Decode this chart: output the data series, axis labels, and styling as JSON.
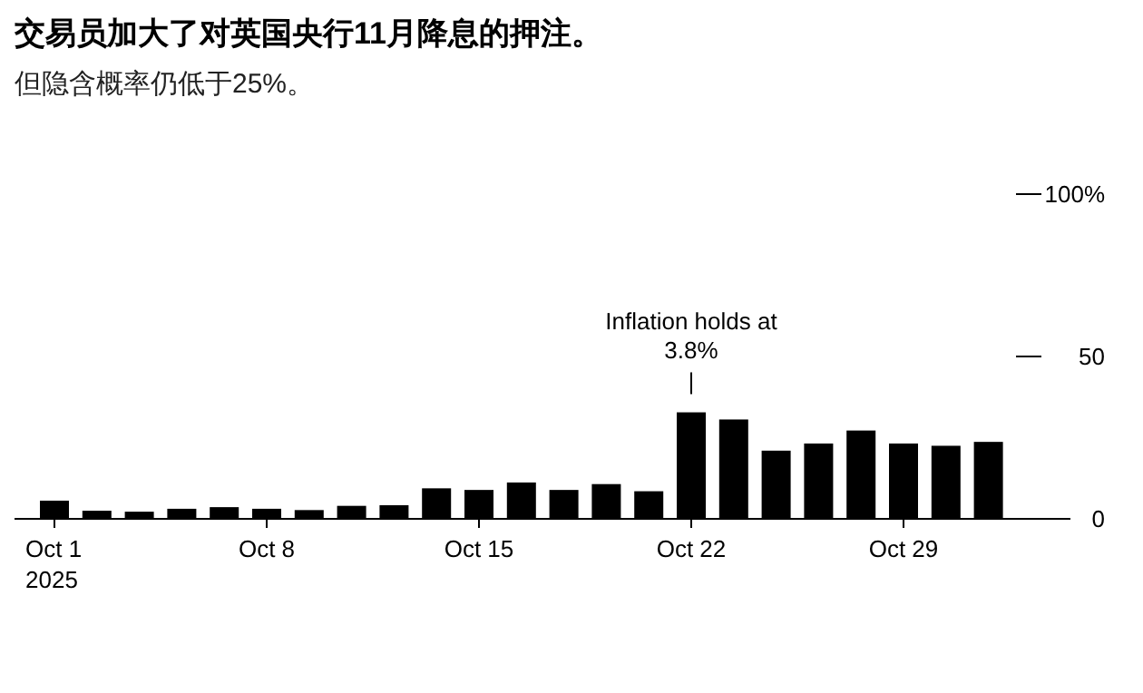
{
  "chart_data": {
    "type": "bar",
    "title": "交易员加大了对英国央行11月降息的押注。",
    "subtitle": "但隐含概率仍低于25%。",
    "categories": [
      "Oct 1\n2025",
      null,
      null,
      null,
      null,
      "Oct 8",
      null,
      null,
      null,
      null,
      "Oct 15",
      null,
      null,
      null,
      null,
      "Oct 22",
      null,
      null,
      null,
      null,
      "Oct 29",
      null,
      null
    ],
    "values": [
      5.6,
      2.5,
      2.2,
      3.1,
      3.6,
      3.1,
      2.7,
      4.0,
      4.2,
      9.4,
      8.9,
      11.2,
      8.9,
      10.7,
      8.5,
      32.8,
      30.6,
      21.0,
      23.2,
      27.2,
      23.2,
      22.5,
      23.7
    ],
    "color": "#000000",
    "ylim": [
      0,
      100
    ],
    "yticks": [
      0,
      50,
      {
        "value": 100,
        "label": "100%"
      }
    ],
    "annotations": [
      {
        "text": "Inflation holds at 3.8%",
        "x": "Oct 22",
        "y": 32.8
      }
    ]
  }
}
